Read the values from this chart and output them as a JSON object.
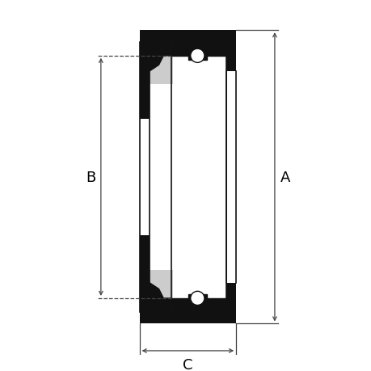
{
  "bg_color": "#ffffff",
  "fill_black": "#111111",
  "fill_gray": "#cccccc",
  "fill_white": "#ffffff",
  "dim_color": "#444444",
  "label_A": "A",
  "label_B": "B",
  "label_C": "C",
  "figsize": [
    4.6,
    4.6
  ],
  "dpi": 100,
  "xL": 170,
  "xR": 295,
  "yTop": 420,
  "yBot": 40,
  "yInnerTop": 305,
  "yInnerBot": 155,
  "wall_thick": 13,
  "inner_wall_thick": 10
}
